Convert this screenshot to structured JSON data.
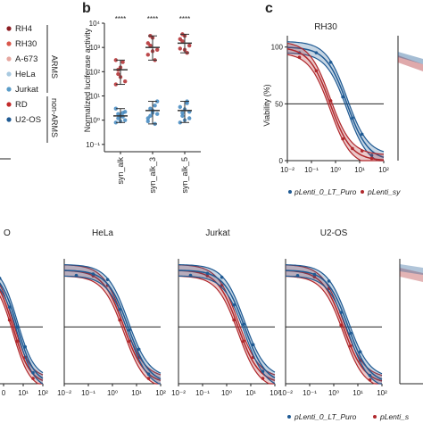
{
  "panels": {
    "b": "b",
    "c": "c"
  },
  "legend_a": {
    "entries": [
      {
        "name": "RH4",
        "color": "#8c1c22"
      },
      {
        "name": "RH30",
        "color": "#d9574b"
      },
      {
        "name": "A-673",
        "color": "#e6a7a0"
      },
      {
        "name": "HeLa",
        "color": "#a8c9e0"
      },
      {
        "name": "Jurkat",
        "color": "#5a9cc8"
      },
      {
        "name": "RD",
        "color": "#c22a2a"
      },
      {
        "name": "U2-OS",
        "color": "#1f5a93"
      }
    ],
    "group_arms": "ARMS",
    "group_non_arms": "non-ARMS"
  },
  "chart_data": [
    {
      "type": "scatter",
      "id": "b",
      "ylabel": "Normalized luciferase activity",
      "ylim": [
        0.05,
        10000
      ],
      "yscale": "log",
      "yticks": [
        "10⁴",
        "10³",
        "10²",
        "10¹",
        "10⁰",
        "10⁻¹"
      ],
      "categories": [
        "syn_alk",
        "syn_alk_3",
        "syn_alk_5"
      ],
      "significance": [
        "****",
        "****",
        "****"
      ],
      "series": [
        {
          "name": "ARMS",
          "color": "#b0282c",
          "means": [
            120,
            1000,
            1500
          ],
          "points": [
            [
              30,
              80,
              150,
              250,
              40,
              300,
              120,
              60
            ],
            [
              500,
              1200,
              2500,
              300,
              800,
              1500,
              3000,
              700
            ],
            [
              900,
              1800,
              3000,
              600,
              1200,
              2200,
              3500,
              800
            ]
          ]
        },
        {
          "name": "non-ARMS",
          "color": "#3f86be",
          "means": [
            1.5,
            2.5,
            2.5
          ],
          "points": [
            [
              0.8,
              1.2,
              1.5,
              2,
              1,
              3,
              1.8,
              0.9,
              1.4,
              2.2
            ],
            [
              0.9,
              1.5,
              2.5,
              4,
              6,
              1.2,
              3,
              2,
              0.7,
              1.8
            ],
            [
              0.8,
              1.5,
              2.8,
              5,
              1.2,
              3.5,
              2,
              1,
              6,
              2.2
            ]
          ]
        }
      ]
    },
    {
      "type": "line",
      "id": "c",
      "title": "RH30",
      "ylabel": "Viability (%)",
      "ylim": [
        0,
        110
      ],
      "yticks": [
        0,
        50,
        100
      ],
      "xscale": "log",
      "xlim": [
        0.01,
        100
      ],
      "xticks": [
        "10⁻²",
        "10⁻¹",
        "10⁰",
        "10¹",
        "10²"
      ],
      "hline": 50,
      "series": [
        {
          "name": "pLenti_0_LT_Puro",
          "color": "#1f5a93",
          "ic50": 3.0,
          "hill": 1.0
        },
        {
          "name": "pLenti_sy",
          "color": "#b0282c",
          "ic50": 0.6,
          "hill": 1.0
        }
      ]
    },
    {
      "type": "line",
      "id": "HeLa-left",
      "title": "O",
      "xticks": [
        "0",
        "10¹",
        "10²"
      ],
      "series": [
        {
          "color": "#b0282c",
          "ic50": 3.0
        },
        {
          "color": "#1f5a93",
          "ic50": 5.0
        }
      ]
    },
    {
      "type": "line",
      "id": "HeLa",
      "title": "HeLa",
      "xticks": [
        "10⁻²",
        "10⁻¹",
        "10⁰",
        "10¹",
        "10²"
      ],
      "series": [
        {
          "color": "#b0282c",
          "ic50": 3.0
        },
        {
          "color": "#1f5a93",
          "ic50": 4.5
        }
      ]
    },
    {
      "type": "line",
      "id": "Jurkat",
      "title": "Jurkat",
      "xticks": [
        "10⁻²",
        "10⁻¹",
        "10⁰",
        "10¹",
        "10²"
      ],
      "series": [
        {
          "color": "#b0282c",
          "ic50": 3.0
        },
        {
          "color": "#1f5a93",
          "ic50": 5.5
        }
      ]
    },
    {
      "type": "line",
      "id": "U2-OS",
      "title": "U2-OS",
      "xticks": [
        "10⁻²",
        "10⁻¹",
        "10⁰",
        "10¹",
        "10²"
      ],
      "series": [
        {
          "color": "#b0282c",
          "ic50": 2.5
        },
        {
          "color": "#1f5a93",
          "ic50": 4.0
        }
      ]
    }
  ],
  "bottom_legend": {
    "blue": "pLenti_0_LT_Puro",
    "red": "pLenti_s"
  },
  "c_legend": {
    "blue": "pLenti_0_LT_Puro",
    "red": "pLenti_sy"
  }
}
